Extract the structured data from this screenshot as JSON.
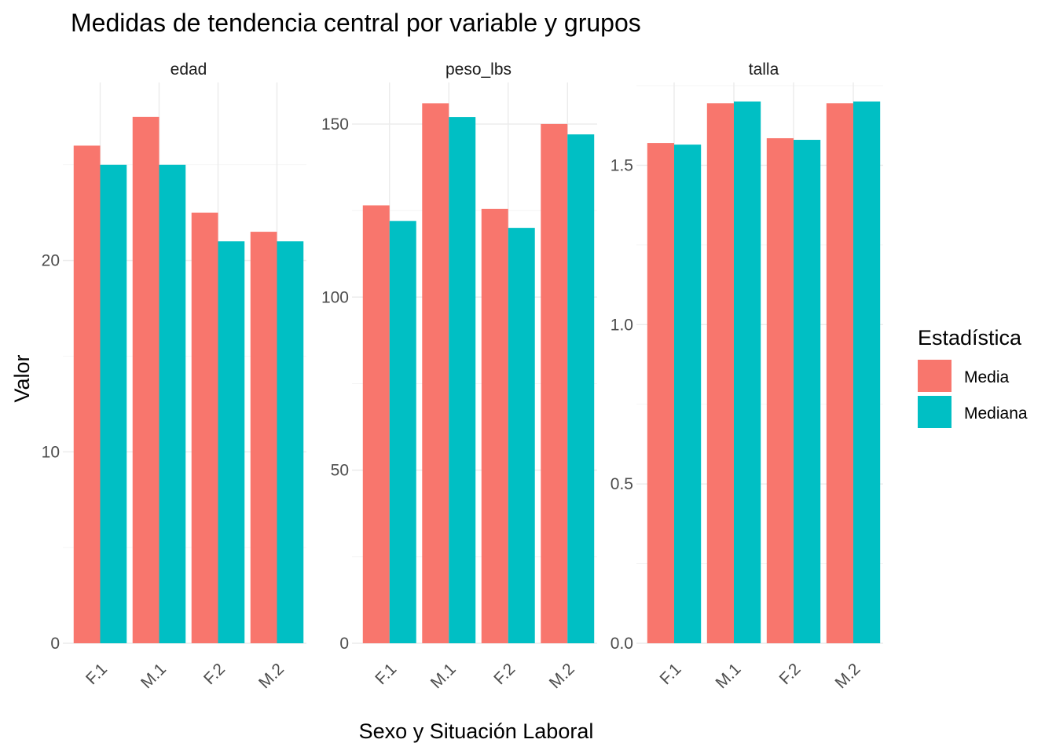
{
  "chart_data": {
    "type": "bar",
    "title": "Medidas de tendencia central por variable y grupos",
    "xlabel": "Sexo y Situación Laboral",
    "ylabel": "Valor",
    "legend": {
      "title": "Estadística",
      "position": "right",
      "entries": [
        {
          "name": "Media",
          "color": "#F8766D"
        },
        {
          "name": "Mediana",
          "color": "#00BFC4"
        }
      ]
    },
    "categories": [
      "F.1",
      "M.1",
      "F.2",
      "M.2"
    ],
    "facets": [
      {
        "name": "edad",
        "ylim": [
          0,
          29.3
        ],
        "yticks": [
          0,
          10,
          20
        ],
        "ytick_labels": [
          "0",
          "10",
          "20"
        ],
        "series": [
          {
            "name": "Media",
            "values": [
              26.0,
              27.5,
              22.5,
              21.5
            ]
          },
          {
            "name": "Mediana",
            "values": [
              25.0,
              25.0,
              21.0,
              21.0
            ]
          }
        ]
      },
      {
        "name": "peso_lbs",
        "ylim": [
          0,
          162
        ],
        "yticks": [
          0,
          50,
          100,
          150
        ],
        "ytick_labels": [
          "0",
          "50",
          "100",
          "150"
        ],
        "series": [
          {
            "name": "Media",
            "values": [
              126.5,
              156.0,
              125.5,
              150.0
            ]
          },
          {
            "name": "Mediana",
            "values": [
              122.0,
              152.0,
              120.0,
              147.0
            ]
          }
        ]
      },
      {
        "name": "talla",
        "ylim": [
          0,
          1.76
        ],
        "yticks": [
          0,
          0.5,
          1.0,
          1.5
        ],
        "ytick_labels": [
          "0.0",
          "0.5",
          "1.0",
          "1.5"
        ],
        "series": [
          {
            "name": "Media",
            "values": [
              1.57,
              1.695,
              1.585,
              1.695
            ]
          },
          {
            "name": "Mediana",
            "values": [
              1.565,
              1.7,
              1.58,
              1.7
            ]
          }
        ]
      }
    ],
    "grid": true
  }
}
